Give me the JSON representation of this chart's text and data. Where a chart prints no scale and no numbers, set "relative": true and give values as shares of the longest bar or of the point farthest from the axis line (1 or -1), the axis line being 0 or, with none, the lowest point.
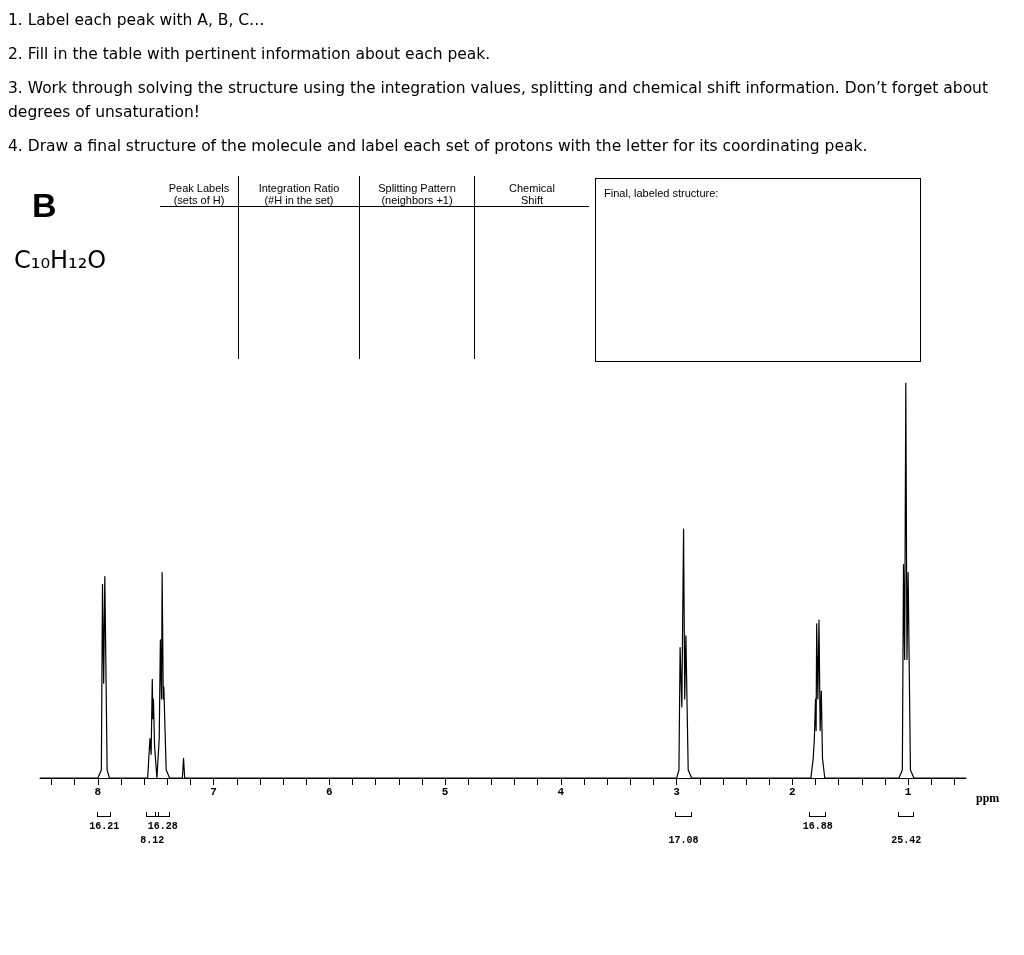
{
  "chart_data": {
    "type": "line",
    "relative": true,
    "xlabel": "ppm",
    "color": "#000000",
    "marker": "none",
    "line_style": "solid",
    "grid": false,
    "tick_labels": "x",
    "xlim": [
      8.5,
      0.5
    ],
    "xticks": [
      {
        "value": 8.4,
        "label": null
      },
      {
        "value": 8.2,
        "label": null
      },
      8,
      {
        "value": 7.8,
        "label": null
      },
      {
        "value": 7.6,
        "label": null
      },
      {
        "value": 7.4,
        "label": null
      },
      {
        "value": 7.2,
        "label": null
      },
      7,
      {
        "value": 6.8,
        "label": null
      },
      {
        "value": 6.6,
        "label": null
      },
      {
        "value": 6.4,
        "label": null
      },
      {
        "value": 6.2,
        "label": null
      },
      6,
      {
        "value": 5.8,
        "label": null
      },
      {
        "value": 5.6,
        "label": null
      },
      {
        "value": 5.4,
        "label": null
      },
      {
        "value": 5.2,
        "label": null
      },
      5,
      {
        "value": 4.8,
        "label": null
      },
      {
        "value": 4.6,
        "label": null
      },
      {
        "value": 4.4,
        "label": null
      },
      {
        "value": 4.2,
        "label": null
      },
      4,
      {
        "value": 3.8,
        "label": null
      },
      {
        "value": 3.6,
        "label": null
      },
      {
        "value": 3.4,
        "label": null
      },
      {
        "value": 3.2,
        "label": null
      },
      3,
      {
        "value": 2.8,
        "label": null
      },
      {
        "value": 2.6,
        "label": null
      },
      {
        "value": 2.4,
        "label": null
      },
      {
        "value": 2.2,
        "label": null
      },
      2,
      {
        "value": 1.8,
        "label": null
      },
      {
        "value": 1.6,
        "label": null
      },
      {
        "value": 1.4,
        "label": null
      },
      {
        "value": 1.2,
        "label": null
      },
      1,
      {
        "value": 0.8,
        "label": null
      },
      {
        "value": 0.6,
        "label": null
      }
    ],
    "x": [
      8.5,
      8.1,
      8.0,
      7.97,
      7.96,
      7.95,
      7.94,
      7.92,
      7.9,
      7.7,
      7.57,
      7.55,
      7.54,
      7.53,
      7.525,
      7.52,
      7.51,
      7.49,
      7.47,
      7.46,
      7.45,
      7.445,
      7.435,
      7.43,
      7.41,
      7.38,
      7.3,
      7.27,
      7.26,
      7.25,
      7.2,
      3.1,
      3.0,
      2.98,
      2.97,
      2.955,
      2.94,
      2.93,
      2.92,
      2.9,
      2.87,
      1.9,
      1.84,
      1.82,
      1.81,
      1.8,
      1.795,
      1.79,
      1.78,
      1.77,
      1.76,
      1.75,
      1.74,
      1.72,
      1.69,
      1.2,
      1.08,
      1.05,
      1.04,
      1.03,
      1.02,
      1.01,
      1.0,
      0.98,
      0.95,
      0.5
    ],
    "values": [
      0,
      0,
      0,
      0.02,
      0.49,
      0.24,
      0.51,
      0.02,
      0,
      0,
      0,
      0.1,
      0.06,
      0.25,
      0.15,
      0.2,
      0.08,
      0,
      0.1,
      0.35,
      0.2,
      0.52,
      0.2,
      0.23,
      0.02,
      0,
      0,
      0,
      0.05,
      0,
      0,
      0,
      0,
      0.02,
      0.33,
      0.18,
      0.63,
      0.2,
      0.36,
      0.02,
      0,
      0,
      0,
      0.05,
      0.1,
      0.2,
      0.12,
      0.39,
      0.2,
      0.4,
      0.12,
      0.22,
      0.05,
      0,
      0,
      0,
      0,
      0.02,
      0.54,
      0.3,
      1,
      0.3,
      0.52,
      0.02,
      0,
      0
    ],
    "annotations": [
      "1. Label each peak with A, B, C…",
      "2. Fill in the table with pertinent information about each peak.",
      "3. Work through solving the structure using the integration values, splitting and chemical shift information. Don’t forget about degrees of unsaturation!",
      "4. Draw a final structure of the molecule and label each set of protons with the letter for its coordinating peak.",
      "B",
      "C₁₀H₁₂O",
      "Peak Labels\n(sets of H)",
      "Integration Ratio\n(#H in the set)",
      "Splitting Pattern\n(neighbors +1)",
      "Chemical\nShift",
      "Final, labeled structure:",
      "16.21",
      "8.12",
      "16.28",
      "17.08",
      "16.88",
      "25.42"
    ]
  }
}
